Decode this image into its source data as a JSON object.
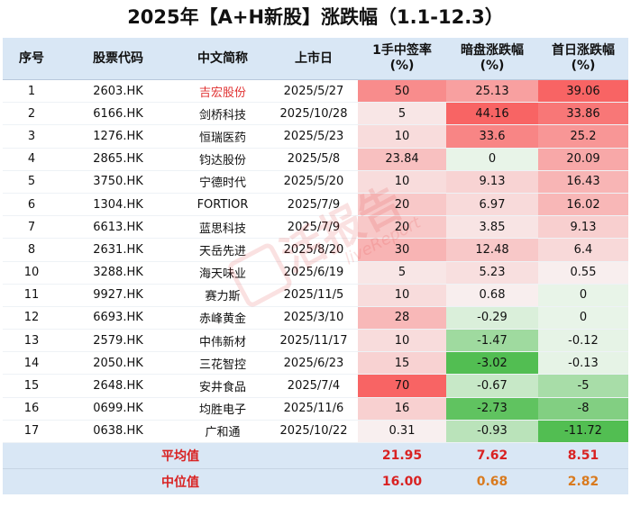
{
  "title": "2025年【A+H新股】涨跌幅（1.1-12.3）",
  "headers": {
    "seq": "序号",
    "code": "股票代码",
    "name": "中文简称",
    "date": "上市日",
    "sign_rate": [
      "1手中签率",
      "(%)"
    ],
    "grey": [
      "暗盘涨跌幅",
      "(%)"
    ],
    "first": [
      "首日涨跌幅",
      "(%)"
    ]
  },
  "rows": [
    {
      "seq": "1",
      "code": "2603.HK",
      "name": "吉宏股份",
      "date": "2025/5/27",
      "sign_rate": "50",
      "grey": "25.13",
      "first": "39.06"
    },
    {
      "seq": "2",
      "code": "6166.HK",
      "name": "剑桥科技",
      "date": "2025/10/28",
      "sign_rate": "5",
      "grey": "44.16",
      "first": "33.86"
    },
    {
      "seq": "3",
      "code": "1276.HK",
      "name": "恒瑞医药",
      "date": "2025/5/23",
      "sign_rate": "10",
      "grey": "33.6",
      "first": "25.2"
    },
    {
      "seq": "4",
      "code": "2865.HK",
      "name": "钧达股份",
      "date": "2025/5/8",
      "sign_rate": "23.84",
      "grey": "0",
      "first": "20.09"
    },
    {
      "seq": "5",
      "code": "3750.HK",
      "name": "宁德时代",
      "date": "2025/5/20",
      "sign_rate": "10",
      "grey": "9.13",
      "first": "16.43"
    },
    {
      "seq": "6",
      "code": "1304.HK",
      "name": "FORTIOR",
      "date": "2025/7/9",
      "sign_rate": "20",
      "grey": "6.97",
      "first": "16.02"
    },
    {
      "seq": "7",
      "code": "6613.HK",
      "name": "蓝思科技",
      "date": "2025/7/9",
      "sign_rate": "20",
      "grey": "3.85",
      "first": "9.13"
    },
    {
      "seq": "8",
      "code": "2631.HK",
      "name": "天岳先进",
      "date": "2025/8/20",
      "sign_rate": "30",
      "grey": "12.48",
      "first": "6.4"
    },
    {
      "seq": "10",
      "code": "3288.HK",
      "name": "海天味业",
      "date": "2025/6/19",
      "sign_rate": "5",
      "grey": "5.23",
      "first": "0.55"
    },
    {
      "seq": "11",
      "code": "9927.HK",
      "name": "赛力斯",
      "date": "2025/11/5",
      "sign_rate": "10",
      "grey": "0.68",
      "first": "0"
    },
    {
      "seq": "12",
      "code": "6693.HK",
      "name": "赤峰黄金",
      "date": "2025/3/10",
      "sign_rate": "28",
      "grey": "-0.29",
      "first": "0"
    },
    {
      "seq": "13",
      "code": "2579.HK",
      "name": "中伟新材",
      "date": "2025/11/17",
      "sign_rate": "10",
      "grey": "-1.47",
      "first": "-0.12"
    },
    {
      "seq": "14",
      "code": "2050.HK",
      "name": "三花智控",
      "date": "2025/6/23",
      "sign_rate": "15",
      "grey": "-3.02",
      "first": "-0.13"
    },
    {
      "seq": "15",
      "code": "2648.HK",
      "name": "安井食品",
      "date": "2025/7/4",
      "sign_rate": "70",
      "grey": "-0.67",
      "first": "-5"
    },
    {
      "seq": "16",
      "code": "0699.HK",
      "name": "均胜电子",
      "date": "2025/11/6",
      "sign_rate": "16",
      "grey": "-2.73",
      "first": "-8"
    },
    {
      "seq": "17",
      "code": "0638.HK",
      "name": "广和通",
      "date": "2025/10/22",
      "sign_rate": "0.31",
      "grey": "-0.93",
      "first": "-11.72"
    }
  ],
  "summary": {
    "avg": {
      "label": "平均值",
      "sign_rate": "21.95",
      "grey": "7.62",
      "first": "8.51"
    },
    "median": {
      "label": "中位值",
      "sign_rate": "16.00",
      "grey": "0.68",
      "first": "2.82"
    }
  },
  "colors": {
    "header_bg": "#d9e7f5",
    "highlight_name": "#e03131",
    "avg_text": "#d92222",
    "median_text": "#d97a1e"
  },
  "watermark": {
    "main": "活报告",
    "sub": "liveReport"
  }
}
